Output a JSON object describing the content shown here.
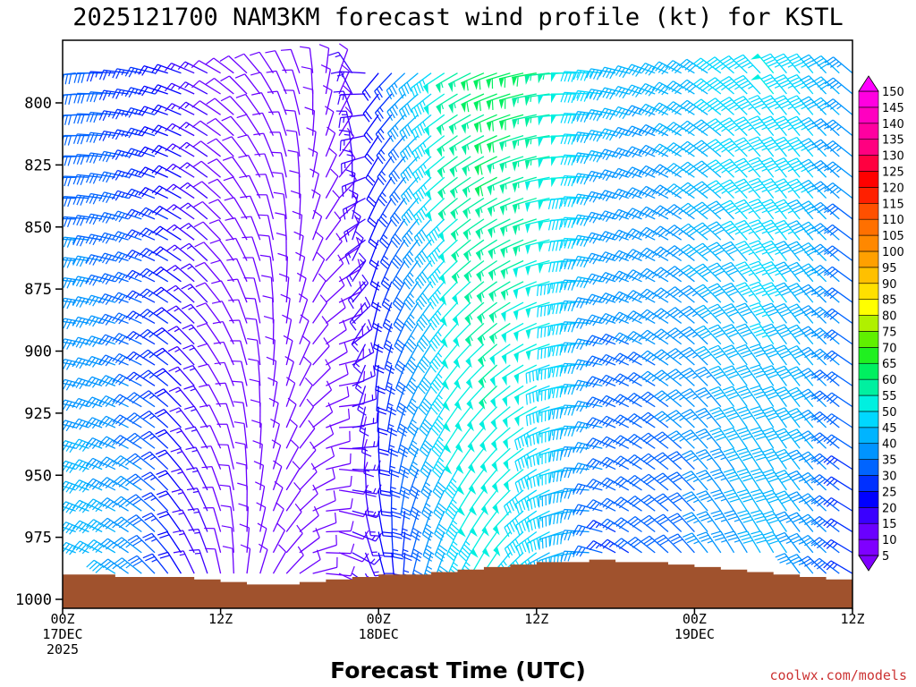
{
  "chart_data": {
    "type": "wind-profile",
    "title": "2025121700 NAM3KM forecast wind profile (kt) for KSTL",
    "xlabel": "Forecast Time (UTC)",
    "ylabel": "",
    "credit": "coolwx.com/models",
    "x_ticks": [
      {
        "hour": 0,
        "lines": [
          "00Z",
          "17DEC",
          "2025"
        ]
      },
      {
        "hour": 12,
        "lines": [
          "12Z"
        ]
      },
      {
        "hour": 24,
        "lines": [
          "00Z",
          "18DEC"
        ]
      },
      {
        "hour": 36,
        "lines": [
          "12Z"
        ]
      },
      {
        "hour": 48,
        "lines": [
          "00Z",
          "19DEC"
        ]
      },
      {
        "hour": 60,
        "lines": [
          "12Z"
        ]
      }
    ],
    "y_ticks": [
      800,
      825,
      850,
      875,
      900,
      925,
      950,
      975,
      1000
    ],
    "xlim": [
      0,
      60
    ],
    "ylim": [
      1000,
      783
    ],
    "colorbar": {
      "labels": [
        5,
        10,
        15,
        20,
        25,
        30,
        35,
        40,
        45,
        50,
        55,
        60,
        65,
        70,
        75,
        80,
        85,
        90,
        95,
        100,
        105,
        110,
        115,
        120,
        125,
        130,
        135,
        140,
        145,
        150
      ],
      "colors": [
        "#7f00ff",
        "#6a00ff",
        "#3a00ff",
        "#0000ff",
        "#0030ff",
        "#0064ff",
        "#0094ff",
        "#00b4ff",
        "#00d8ff",
        "#00f0e0",
        "#00f0a0",
        "#00f060",
        "#20f020",
        "#60f000",
        "#b0f000",
        "#ffff00",
        "#ffe000",
        "#ffc000",
        "#ffa000",
        "#ff8800",
        "#ff7000",
        "#ff5000",
        "#ff2000",
        "#ff0000",
        "#ff0040",
        "#ff0080",
        "#ff00a0",
        "#ff00c0",
        "#ff00e0",
        "#ff00ff"
      ]
    },
    "terrain_pressure_hpa": [
      [
        0,
        990
      ],
      [
        2,
        990
      ],
      [
        4,
        991
      ],
      [
        6,
        991
      ],
      [
        8,
        991
      ],
      [
        10,
        992
      ],
      [
        12,
        993
      ],
      [
        14,
        994
      ],
      [
        16,
        994
      ],
      [
        18,
        993
      ],
      [
        20,
        992
      ],
      [
        22,
        991
      ],
      [
        24,
        990
      ],
      [
        26,
        990
      ],
      [
        28,
        989
      ],
      [
        30,
        988
      ],
      [
        32,
        987
      ],
      [
        34,
        986
      ],
      [
        36,
        985
      ],
      [
        38,
        985
      ],
      [
        40,
        984
      ],
      [
        42,
        985
      ],
      [
        44,
        985
      ],
      [
        46,
        986
      ],
      [
        48,
        987
      ],
      [
        50,
        988
      ],
      [
        52,
        989
      ],
      [
        54,
        990
      ],
      [
        56,
        991
      ],
      [
        58,
        992
      ],
      [
        60,
        993
      ]
    ],
    "wind_series": [
      {
        "hour": 0,
        "dir_lower": 290,
        "spd_lower": 40,
        "dir_upper": 260,
        "spd_upper": 30
      },
      {
        "hour": 3,
        "dir_lower": 300,
        "spd_lower": 42,
        "dir_upper": 270,
        "spd_upper": 28
      },
      {
        "hour": 6,
        "dir_lower": 310,
        "spd_lower": 35,
        "dir_upper": 280,
        "spd_upper": 25
      },
      {
        "hour": 9,
        "dir_lower": 330,
        "spd_lower": 20,
        "dir_upper": 290,
        "spd_upper": 20
      },
      {
        "hour": 12,
        "dir_lower": 350,
        "spd_lower": 10,
        "dir_upper": 300,
        "spd_upper": 12
      },
      {
        "hour": 15,
        "dir_lower": 20,
        "spd_lower": 8,
        "dir_upper": 320,
        "spd_upper": 8
      },
      {
        "hour": 18,
        "dir_lower": 60,
        "spd_lower": 10,
        "dir_upper": 340,
        "spd_upper": 8
      },
      {
        "hour": 21,
        "dir_lower": 120,
        "spd_lower": 12,
        "dir_upper": 20,
        "spd_upper": 10
      },
      {
        "hour": 24,
        "dir_lower": 160,
        "spd_lower": 18,
        "dir_upper": 220,
        "spd_upper": 20
      },
      {
        "hour": 27,
        "dir_lower": 190,
        "spd_lower": 30,
        "dir_upper": 230,
        "spd_upper": 40
      },
      {
        "hour": 30,
        "dir_lower": 200,
        "spd_lower": 45,
        "dir_upper": 240,
        "spd_upper": 55
      },
      {
        "hour": 33,
        "dir_lower": 210,
        "spd_lower": 48,
        "dir_upper": 250,
        "spd_upper": 60
      },
      {
        "hour": 36,
        "dir_lower": 230,
        "spd_lower": 42,
        "dir_upper": 260,
        "spd_upper": 58
      },
      {
        "hour": 39,
        "dir_lower": 260,
        "spd_lower": 38,
        "dir_upper": 270,
        "spd_upper": 50
      },
      {
        "hour": 42,
        "dir_lower": 300,
        "spd_lower": 25,
        "dir_upper": 280,
        "spd_upper": 40
      },
      {
        "hour": 45,
        "dir_lower": 310,
        "spd_lower": 28,
        "dir_upper": 290,
        "spd_upper": 38
      },
      {
        "hour": 48,
        "dir_lower": 320,
        "spd_lower": 30,
        "dir_upper": 300,
        "spd_upper": 40
      },
      {
        "hour": 51,
        "dir_lower": 330,
        "spd_lower": 35,
        "dir_upper": 310,
        "spd_upper": 45
      },
      {
        "hour": 54,
        "dir_lower": 330,
        "spd_lower": 38,
        "dir_upper": 320,
        "spd_upper": 48
      },
      {
        "hour": 57,
        "dir_lower": 320,
        "spd_lower": 35,
        "dir_upper": 320,
        "spd_upper": 45
      },
      {
        "hour": 60,
        "dir_lower": 300,
        "spd_lower": 25,
        "dir_upper": 310,
        "spd_upper": 35
      }
    ]
  }
}
